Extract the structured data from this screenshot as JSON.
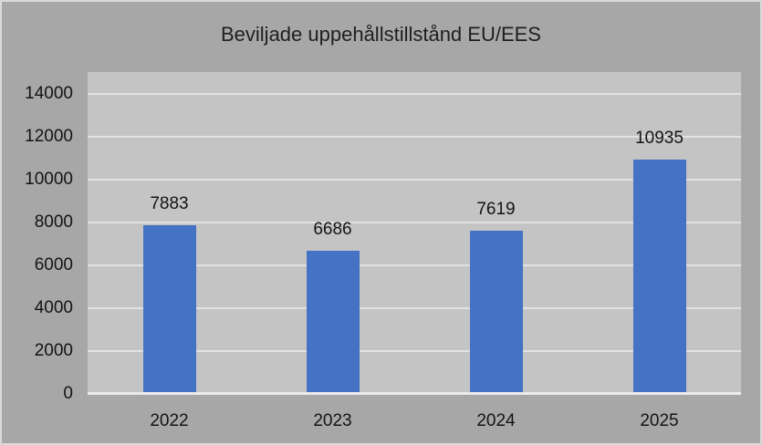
{
  "chart_data": {
    "type": "bar",
    "title": "Beviljade uppehållstillstånd EU/EES",
    "categories": [
      "2022",
      "2023",
      "2024",
      "2025"
    ],
    "values": [
      7883,
      6686,
      7619,
      10935
    ],
    "data_labels": [
      "7883",
      "6686",
      "7619",
      "10935"
    ],
    "xlabel": "",
    "ylabel": "",
    "ylim": [
      0,
      15000
    ],
    "ytick_interval": 2000,
    "yticks": [
      0,
      2000,
      4000,
      6000,
      8000,
      10000,
      12000,
      14000
    ],
    "grid": true,
    "legend_position": "none",
    "colors": {
      "bar": "#4472C4",
      "chart_background": "#A7A7A7",
      "plot_background": "#C4C4C4",
      "gridline": "#E2E2E2",
      "axis_line": "#EBEBEB",
      "text": "#1F1F1F",
      "frame_border": "#DADADA"
    }
  }
}
